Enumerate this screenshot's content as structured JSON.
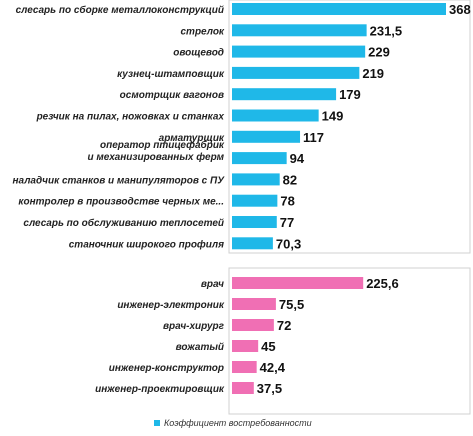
{
  "chart_data": {
    "type": "bar",
    "orientation": "horizontal",
    "legend": {
      "label": "Коэффициент востребованности",
      "position": "bottom"
    },
    "groups": [
      {
        "color": "#1fb8e8",
        "categories": [
          [
            "слесарь по сборке металлоконструкций"
          ],
          [
            "стрелок"
          ],
          [
            "овощевод"
          ],
          [
            "кузнец-штамповщик"
          ],
          [
            "осмотрщик вагонов"
          ],
          [
            "резчик на пилах,  ножовках и станках"
          ],
          [
            "арматурщик"
          ],
          [
            "оператор птицефабрик",
            "и механизированных ферм"
          ],
          [
            "наладчик станков и манипуляторов  с ПУ"
          ],
          [
            "контролер в производстве черных ме..."
          ],
          [
            "слесарь по обслуживанию теплосетей"
          ],
          [
            "станочник широкого профиля"
          ]
        ],
        "values": [
          368,
          231.5,
          229,
          219,
          179,
          149,
          117,
          94,
          82,
          78,
          77,
          70.3
        ],
        "value_labels": [
          "368",
          "231,5",
          "229",
          "219",
          "179",
          "149",
          "117",
          "94",
          "82",
          "78",
          "77",
          "70,3"
        ]
      },
      {
        "color": "#f06fb4",
        "categories": [
          [
            "врач"
          ],
          [
            "инженер-электроник"
          ],
          [
            "врач-хирург"
          ],
          [
            "вожатый"
          ],
          [
            "инженер-конструктор"
          ],
          [
            "инженер-проектировщик"
          ]
        ],
        "values": [
          225.6,
          75.5,
          72,
          45,
          42.4,
          37.5
        ],
        "value_labels": [
          "225,6",
          "75,5",
          "72",
          "45",
          "42,4",
          "37,5"
        ]
      }
    ],
    "xlim": [
      0,
      368
    ],
    "grid": false
  }
}
